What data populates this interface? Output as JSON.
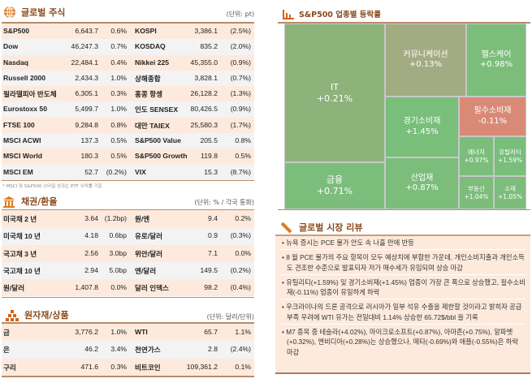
{
  "stocks": {
    "title": "글로벌 주식",
    "unit": "(단위: pt)",
    "rows": [
      [
        "S&P500",
        "6,643.7",
        "0.6%",
        "KOSPI",
        "3,386.1",
        "(2.5%)"
      ],
      [
        "Dow",
        "46,247.3",
        "0.7%",
        "KOSDAQ",
        "835.2",
        "(2.0%)"
      ],
      [
        "Nasdaq",
        "22,484.1",
        "0.4%",
        "Nikkei 225",
        "45,355.0",
        "(0.9%)"
      ],
      [
        "Russell 2000",
        "2,434.3",
        "1.0%",
        "상해종합",
        "3,828.1",
        "(0.7%)"
      ],
      [
        "필라델피아 반도체",
        "6,305.1",
        "0.3%",
        "홍콩 항셍",
        "26,128.2",
        "(1.3%)"
      ],
      [
        "Eurostoxx 50",
        "5,499.7",
        "1.0%",
        "인도 SENSEX",
        "80,426.5",
        "(0.9%)"
      ],
      [
        "FTSE 100",
        "9,284.8",
        "0.8%",
        "대만 TAIEX",
        "25,580.3",
        "(1.7%)"
      ],
      [
        "MSCI ACWI",
        "137.3",
        "0.5%",
        "S&P500 Value",
        "205.5",
        "0.8%"
      ],
      [
        "MSCI World",
        "180.3",
        "0.5%",
        "S&P500 Growth",
        "119.8",
        "0.5%"
      ],
      [
        "MSCI EM",
        "52.7",
        "(0.2%)",
        "VIX",
        "15.3",
        "(8.7%)"
      ]
    ],
    "note": "* MSCI 와 S&P500 스타일 성과는 ETF 수익률 기준"
  },
  "bonds": {
    "title": "채권/환율",
    "unit": "(단위: % / 각국 통화)",
    "rows": [
      [
        "미국채 2 년",
        "3.64",
        "(1.2bp)",
        "원/엔",
        "9.4",
        "0.2%"
      ],
      [
        "미국채 10 년",
        "4.18",
        "0.6bp",
        "유로/달러",
        "0.9",
        "(0.3%)"
      ],
      [
        "국고채 3 년",
        "2.56",
        "3.0bp",
        "위안/달러",
        "7.1",
        "0.0%"
      ],
      [
        "국고채 10 년",
        "2.94",
        "5.0bp",
        "엔/달러",
        "149.5",
        "(0.2%)"
      ],
      [
        "원/달러",
        "1,407.8",
        "0.0%",
        "달러 인덱스",
        "98.2",
        "(0.4%)"
      ]
    ]
  },
  "commodities": {
    "title": "원자재/상품",
    "unit": "(단위: 달러/단위)",
    "rows": [
      [
        "금",
        "3,776.2",
        "1.0%",
        "WTI",
        "65.7",
        "1.1%"
      ],
      [
        "은",
        "46.2",
        "3.4%",
        "천연가스",
        "2.8",
        "(2.4%)"
      ],
      [
        "구리",
        "471.6",
        "0.3%",
        "비트코인",
        "109,361.2",
        "0.1%"
      ]
    ]
  },
  "treemap": {
    "title": "S&P500 업종별 등락률",
    "cells": [
      {
        "name": "IT",
        "value": "+0.21%",
        "color": "#8db27a"
      },
      {
        "name": "금융",
        "value": "+0.71%",
        "color": "#7dbd7c"
      },
      {
        "name": "커뮤니케이션",
        "value": "+0.13%",
        "color": "#a3ab82"
      },
      {
        "name": "헬스케어",
        "value": "+0.98%",
        "color": "#7dbd7c"
      },
      {
        "name": "경기소비재",
        "value": "+1.45%",
        "color": "#79be7b"
      },
      {
        "name": "산업재",
        "value": "+0.87%",
        "color": "#7dbd7c"
      },
      {
        "name": "필수소비재",
        "value": "-0.11%",
        "color": "#d98a77"
      },
      {
        "name": "에너지",
        "value": "+0.97%",
        "color": "#7dbd7c"
      },
      {
        "name": "유틸리티",
        "value": "+1.59%",
        "color": "#79be7b"
      },
      {
        "name": "부동산",
        "value": "+1.04%",
        "color": "#7dbd7c"
      },
      {
        "name": "소재",
        "value": "+1.05%",
        "color": "#7dbd7c"
      }
    ]
  },
  "review": {
    "title": "글로벌 시장 리뷰",
    "items": [
      "• 뉴욕 증시는 PCE 물가 안도 속 나흘 만에 반등",
      "• 8 월 PCE 물가의 주요 항목이 모두 예상치에 부합한 가운데, 개인소비지출과 개인소득도 견조한 수준으로 발표되자 저가 매수세가 유입되며 상승 마감",
      "• 유틸리티(+1.59%) 및 경기소비재(+1.45%) 업종이 가장 큰 폭으로 상승했고, 필수소비재(-0.11%) 업종이 유일하게 하락",
      "• 우크라이나의 드론 공격으로 러시아가 일부 석유 수출을 제한할 것이라고 밝히자 공급 부족 우려에 WTI 유가는 전일대비 1.14% 상승한 65.72$/bbl 을 기록",
      "• M7 종목 중 테슬라(+4.02%), 마이크로소프트(+0.87%), 아마존(+0.75%), 알파벳(+0.32%), 엔비디아(+0.28%)는 상승했으나, 메타(-0.69%)와 애플(-0.55%)은 하락 마감"
    ]
  }
}
